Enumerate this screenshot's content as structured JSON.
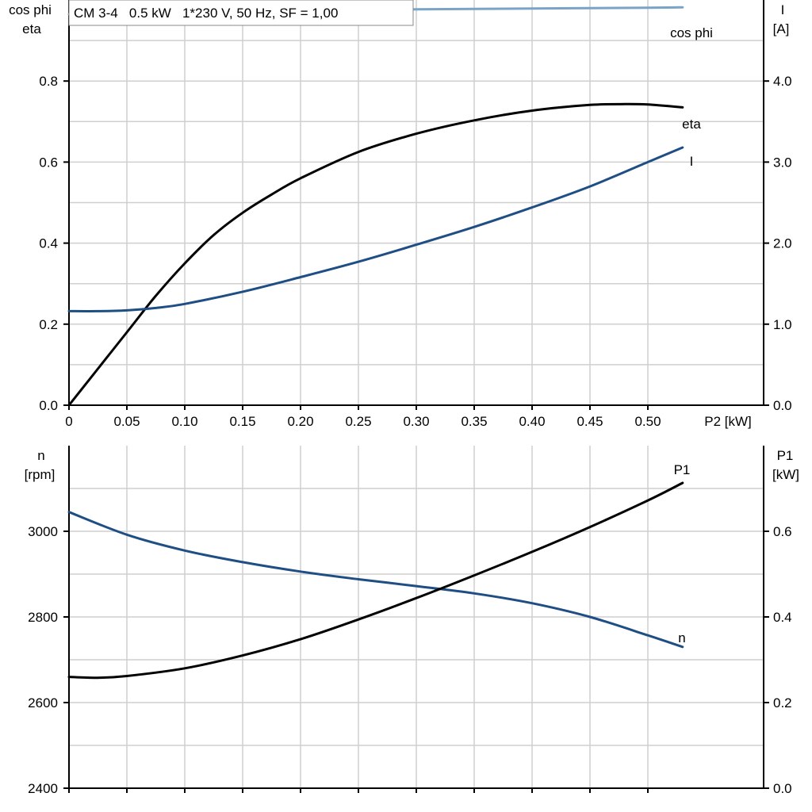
{
  "chart_data": [
    {
      "type": "line",
      "title": "CM 3-4   0.5 kW   1*230 V, 50 Hz, SF = 1,00",
      "xlabel": "P2 [kW]",
      "ylabel_left_line1": "cos phi",
      "ylabel_left_line2": "eta",
      "ylabel_right_line1": "I",
      "ylabel_right_line2": "[A]",
      "xlim": [
        0,
        0.6
      ],
      "ylim_left": [
        0,
        1.0
      ],
      "ylim_right": [
        0,
        5.0
      ],
      "x_ticks": [
        0,
        0.05,
        0.1,
        0.15,
        0.2,
        0.25,
        0.3,
        0.35,
        0.4,
        0.45,
        0.5
      ],
      "x_tick_labels": [
        "0",
        "0.05",
        "0.10",
        "0.15",
        "0.20",
        "0.25",
        "0.30",
        "0.35",
        "0.40",
        "0.45",
        "0.50"
      ],
      "y_left_ticks": [
        0,
        0.2,
        0.4,
        0.6,
        0.8
      ],
      "y_left_tick_labels": [
        "0.0",
        "0.2",
        "0.4",
        "0.6",
        "0.8"
      ],
      "y_right_ticks": [
        0,
        1,
        2,
        3,
        4
      ],
      "y_right_tick_labels": [
        "0.0",
        "1.0",
        "2.0",
        "3.0",
        "4.0"
      ],
      "grid": true,
      "series": [
        {
          "name": "cos phi",
          "axis": "left",
          "color": "#7ba3c8",
          "x": [
            0,
            0.1,
            0.2,
            0.3,
            0.4,
            0.5,
            0.53
          ],
          "y": [
            0.965,
            0.97,
            0.974,
            0.977,
            0.979,
            0.981,
            0.982
          ]
        },
        {
          "name": "eta",
          "axis": "left",
          "color": "#000000",
          "x": [
            0,
            0.025,
            0.05,
            0.075,
            0.1,
            0.125,
            0.15,
            0.175,
            0.2,
            0.25,
            0.3,
            0.35,
            0.4,
            0.45,
            0.48,
            0.5,
            0.53
          ],
          "y": [
            0.0,
            0.09,
            0.18,
            0.27,
            0.35,
            0.42,
            0.475,
            0.52,
            0.56,
            0.625,
            0.67,
            0.703,
            0.727,
            0.741,
            0.743,
            0.742,
            0.735
          ]
        },
        {
          "name": "I",
          "axis": "right",
          "color": "#1f4e85",
          "x": [
            0,
            0.025,
            0.05,
            0.075,
            0.1,
            0.15,
            0.2,
            0.25,
            0.3,
            0.35,
            0.4,
            0.45,
            0.5,
            0.53
          ],
          "y": [
            1.16,
            1.16,
            1.17,
            1.2,
            1.25,
            1.4,
            1.58,
            1.77,
            1.98,
            2.2,
            2.44,
            2.7,
            3.0,
            3.18
          ]
        }
      ]
    },
    {
      "type": "line",
      "xlim": [
        0,
        0.6
      ],
      "ylabel_left_line1": "n",
      "ylabel_left_line2": "[rpm]",
      "ylabel_right_line1": "P1",
      "ylabel_right_line2": "[kW]",
      "ylim_left": [
        2400,
        3200
      ],
      "ylim_right": [
        0,
        0.8
      ],
      "y_left_ticks": [
        2400,
        2600,
        2800,
        3000
      ],
      "y_left_tick_labels": [
        "2400",
        "2600",
        "2800",
        "3000"
      ],
      "y_right_ticks": [
        0,
        0.2,
        0.4,
        0.6
      ],
      "y_right_tick_labels": [
        "0.0",
        "0.2",
        "0.4",
        "0.6"
      ],
      "grid": true,
      "series": [
        {
          "name": "n",
          "axis": "left",
          "color": "#1f4e85",
          "x": [
            0,
            0.05,
            0.1,
            0.15,
            0.2,
            0.25,
            0.3,
            0.35,
            0.4,
            0.45,
            0.5,
            0.53
          ],
          "y": [
            3045,
            2992,
            2955,
            2928,
            2906,
            2888,
            2872,
            2855,
            2832,
            2800,
            2757,
            2730
          ]
        },
        {
          "name": "P1",
          "axis": "right",
          "color": "#000000",
          "x": [
            0,
            0.025,
            0.05,
            0.1,
            0.15,
            0.2,
            0.25,
            0.3,
            0.35,
            0.4,
            0.45,
            0.5,
            0.53
          ],
          "y": [
            0.26,
            0.258,
            0.262,
            0.28,
            0.31,
            0.348,
            0.394,
            0.444,
            0.497,
            0.552,
            0.61,
            0.672,
            0.713
          ]
        }
      ]
    }
  ]
}
